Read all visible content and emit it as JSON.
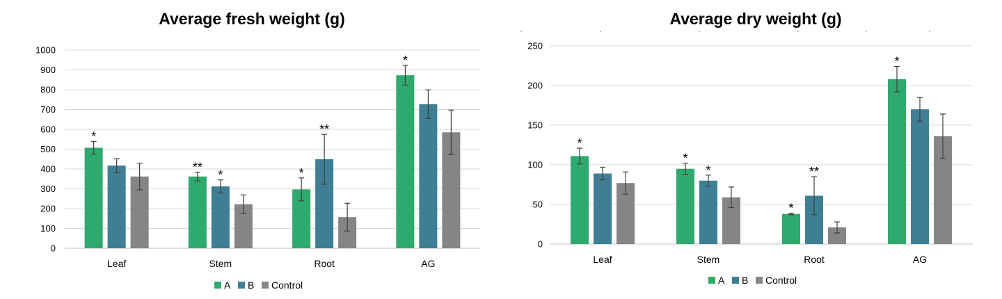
{
  "colors": {
    "A": "#2eaa6e",
    "B": "#3f7f96",
    "Control": "#858585"
  },
  "chart_data": [
    {
      "type": "bar",
      "title": "Average fresh weight (g)",
      "xlabel": "",
      "ylabel": "",
      "ylim": [
        0,
        1000
      ],
      "yticks": [
        0,
        100,
        200,
        300,
        400,
        500,
        600,
        700,
        800,
        900,
        1000
      ],
      "grid": true,
      "legend_position": "bottom",
      "categories": [
        "Leaf",
        "Stem",
        "Root",
        "AG"
      ],
      "series": [
        {
          "name": "A",
          "values": [
            507,
            362,
            297,
            873
          ],
          "errors": [
            32,
            22,
            58,
            50
          ],
          "significance": [
            "*",
            "**",
            "*",
            "*"
          ]
        },
        {
          "name": "B",
          "values": [
            417,
            312,
            449,
            727
          ],
          "errors": [
            35,
            33,
            126,
            72
          ],
          "significance": [
            "",
            "*",
            "**",
            ""
          ]
        },
        {
          "name": "Control",
          "values": [
            362,
            222,
            157,
            585
          ],
          "errors": [
            67,
            47,
            70,
            112
          ],
          "significance": [
            "",
            "",
            "",
            ""
          ]
        }
      ]
    },
    {
      "type": "bar",
      "title": "Average dry weight (g)",
      "xlabel": "",
      "ylabel": "",
      "ylim": [
        0,
        250
      ],
      "yticks": [
        0,
        50,
        100,
        150,
        200,
        250
      ],
      "grid": true,
      "legend_position": "bottom",
      "categories": [
        "Leaf",
        "Stem",
        "Root",
        "AG"
      ],
      "series": [
        {
          "name": "A",
          "values": [
            111,
            95,
            38,
            208
          ],
          "errors": [
            10,
            7,
            1,
            16
          ],
          "significance": [
            "*",
            "*",
            "*",
            "*"
          ]
        },
        {
          "name": "B",
          "values": [
            89,
            80,
            61,
            170
          ],
          "errors": [
            8,
            7,
            24,
            15
          ],
          "significance": [
            "",
            "*",
            "**",
            ""
          ]
        },
        {
          "name": "Control",
          "values": [
            77,
            59,
            21,
            136
          ],
          "errors": [
            14,
            13,
            7,
            28
          ],
          "significance": [
            "",
            "",
            "",
            ""
          ]
        }
      ]
    }
  ]
}
